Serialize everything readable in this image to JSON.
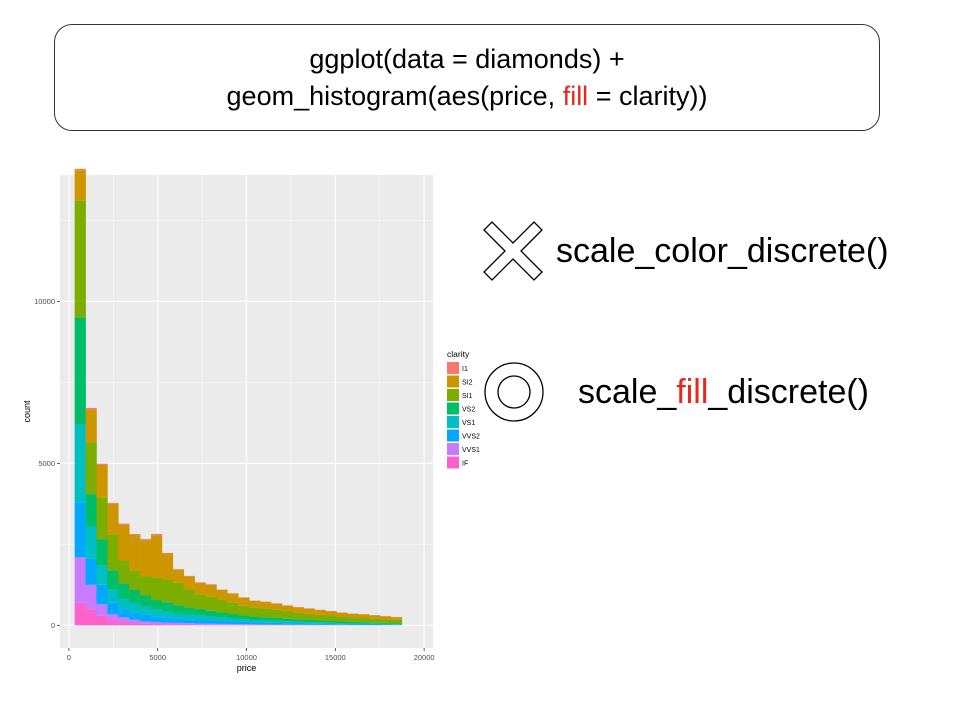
{
  "code": {
    "line1": "ggplot(data = diamonds) +",
    "line2_pre": "geom_histogram(aes(price, ",
    "line2_hl": "fill",
    "line2_post": " = clarity))"
  },
  "options": [
    {
      "mark": "cross-icon",
      "pre": "scale_color_discrete()",
      "hl": "",
      "post": ""
    },
    {
      "mark": "double-circle-icon",
      "pre": "scale_",
      "hl": "fill",
      "post": "_discrete()"
    }
  ],
  "colors": {
    "highlight": "#e8261a",
    "panel": "#ebebeb",
    "grid": "#ffffff"
  },
  "chart_data": {
    "type": "bar",
    "stacked": true,
    "xlabel": "price",
    "ylabel": "count",
    "xlim": [
      -500,
      20500
    ],
    "ylim": [
      -700,
      13900
    ],
    "x_ticks": [
      0,
      5000,
      10000,
      15000,
      20000
    ],
    "y_ticks": [
      0,
      5000,
      10000
    ],
    "grid": true,
    "legend": {
      "title": "clarity",
      "position": "right"
    },
    "bin_width": 614,
    "bin_centers": [
      633,
      1247,
      1861,
      2475,
      3089,
      3703,
      4317,
      4931,
      5545,
      6159,
      6773,
      7387,
      8001,
      8615,
      9229,
      9843,
      10457,
      11071,
      11685,
      12299,
      12913,
      13527,
      14141,
      14755,
      15369,
      15983,
      16597,
      17211,
      17825,
      18439
    ],
    "series": [
      {
        "name": "I1",
        "color": "#f8766d",
        "values": [
          40,
          60,
          40,
          30,
          40,
          30,
          40,
          40,
          20,
          20,
          20,
          20,
          20,
          10,
          10,
          10,
          10,
          10,
          10,
          10,
          10,
          10,
          10,
          10,
          10,
          10,
          10,
          10,
          10,
          10
        ]
      },
      {
        "name": "SI2",
        "color": "#cd9600",
        "values": [
          950,
          1000,
          1000,
          950,
          1100,
          1100,
          1100,
          1300,
          800,
          400,
          400,
          350,
          350,
          300,
          280,
          250,
          200,
          200,
          190,
          180,
          170,
          160,
          140,
          130,
          120,
          110,
          110,
          100,
          90,
          80
        ]
      },
      {
        "name": "SI1",
        "color": "#7cae00",
        "values": [
          3600,
          1600,
          1300,
          1100,
          700,
          600,
          600,
          700,
          700,
          700,
          550,
          450,
          450,
          400,
          350,
          300,
          280,
          270,
          250,
          220,
          200,
          190,
          180,
          170,
          150,
          140,
          130,
          120,
          110,
          100
        ]
      },
      {
        "name": "VS2",
        "color": "#00be67",
        "values": [
          3300,
          1000,
          800,
          600,
          500,
          400,
          350,
          300,
          300,
          250,
          220,
          200,
          180,
          160,
          140,
          120,
          110,
          100,
          90,
          80,
          70,
          65,
          60,
          55,
          50,
          45,
          40,
          35,
          30,
          30
        ]
      },
      {
        "name": "VS1",
        "color": "#00bfc4",
        "values": [
          2400,
          1000,
          600,
          400,
          300,
          300,
          250,
          200,
          180,
          150,
          150,
          140,
          120,
          100,
          90,
          80,
          75,
          70,
          65,
          60,
          55,
          50,
          45,
          40,
          35,
          30,
          28,
          25,
          22,
          20
        ]
      },
      {
        "name": "VVS2",
        "color": "#00a9ff",
        "values": [
          1700,
          800,
          600,
          350,
          250,
          220,
          200,
          180,
          150,
          140,
          120,
          110,
          100,
          90,
          80,
          70,
          60,
          55,
          50,
          45,
          40,
          35,
          30,
          25,
          22,
          20,
          18,
          16,
          14,
          12
        ]
      },
      {
        "name": "VVS1",
        "color": "#c77cff",
        "values": [
          1400,
          750,
          350,
          200,
          150,
          100,
          70,
          60,
          50,
          45,
          40,
          35,
          30,
          28,
          25,
          22,
          20,
          18,
          16,
          14,
          12,
          10,
          10,
          8,
          8,
          6,
          6,
          5,
          5,
          4
        ]
      },
      {
        "name": "IF",
        "color": "#ff61cc",
        "values": [
          700,
          500,
          300,
          150,
          100,
          70,
          50,
          40,
          35,
          30,
          25,
          20,
          18,
          16,
          14,
          12,
          10,
          10,
          8,
          8,
          6,
          6,
          5,
          5,
          4,
          4,
          3,
          3,
          3,
          2
        ]
      }
    ]
  }
}
